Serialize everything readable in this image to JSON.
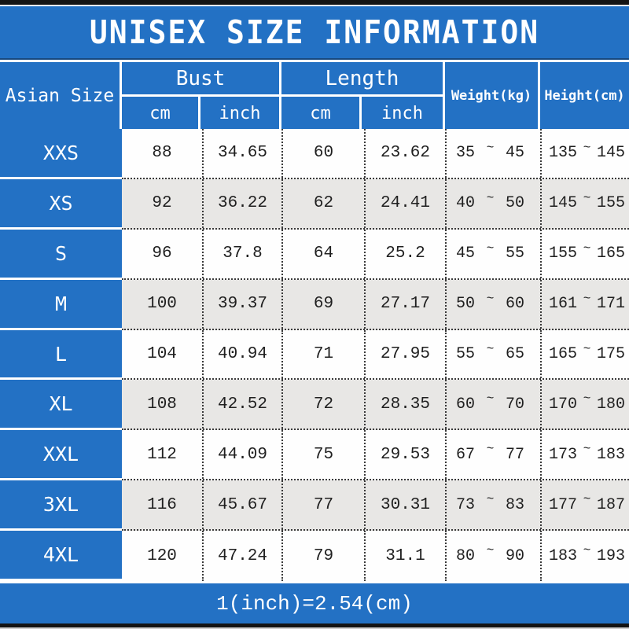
{
  "title": "UNISEX SIZE INFORMATION",
  "header": {
    "size_column_label": "Asian Size",
    "bust_label": "Bust",
    "length_label": "Length",
    "cm_label": "cm",
    "inch_label": "inch",
    "weight_label": "Weight(kg)",
    "height_label": "Height(cm)",
    "tilde": "~"
  },
  "footer": {
    "conversion_note": "1(inch)=2.54(cm)"
  },
  "colors": {
    "blue": "#2371C4",
    "navy_edge": "#17497F",
    "gray_row": "#E8E7E5",
    "white_row": "#FEFEFE",
    "black_bar": "#141414",
    "text": "#1F1F1F",
    "white": "#FFFFFF"
  },
  "chart_data": {
    "type": "table",
    "title": "UNISEX SIZE INFORMATION",
    "columns": [
      "Asian Size",
      "Bust cm",
      "Bust inch",
      "Length cm",
      "Length inch",
      "Weight(kg)",
      "Height(cm)"
    ],
    "rows": [
      [
        "XXS",
        "88",
        "34.65",
        "60",
        "23.62",
        "35~45",
        "135~145"
      ],
      [
        "XS",
        "92",
        "36.22",
        "62",
        "24.41",
        "40~50",
        "145~155"
      ],
      [
        "S",
        "96",
        "37.8",
        "64",
        "25.2",
        "45~55",
        "155~165"
      ],
      [
        "M",
        "100",
        "39.37",
        "69",
        "27.17",
        "50~60",
        "161~171"
      ],
      [
        "L",
        "104",
        "40.94",
        "71",
        "27.95",
        "55~65",
        "165~175"
      ],
      [
        "XL",
        "108",
        "42.52",
        "72",
        "28.35",
        "60~70",
        "170~180"
      ],
      [
        "XXL",
        "112",
        "44.09",
        "75",
        "29.53",
        "67~77",
        "173~183"
      ],
      [
        "3XL",
        "116",
        "45.67",
        "77",
        "30.31",
        "73~83",
        "177~187"
      ],
      [
        "4XL",
        "120",
        "47.24",
        "79",
        "31.1",
        "80~90",
        "183~193"
      ]
    ],
    "note": "1(inch)=2.54(cm)"
  }
}
